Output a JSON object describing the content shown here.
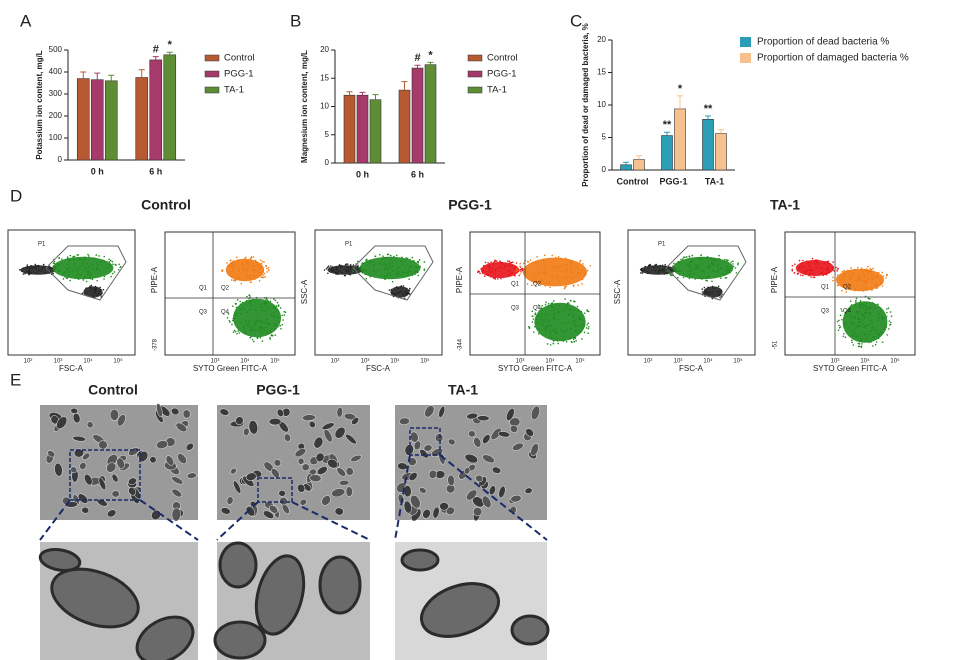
{
  "chart_data": [
    {
      "type": "bar",
      "panel": "A",
      "y_label": "Potassium ion content, mg/L",
      "categories": [
        "0 h",
        "6 h"
      ],
      "ylim": [
        0,
        500
      ],
      "yticks": [
        0,
        100,
        200,
        300,
        400,
        500
      ],
      "series": [
        {
          "name": "Control",
          "color": "#b85a31",
          "values": [
            370,
            375
          ],
          "errors": [
            30,
            35
          ]
        },
        {
          "name": "PGG-1",
          "color": "#a63a6b",
          "values": [
            365,
            455
          ],
          "errors": [
            30,
            15
          ],
          "annotations": [
            null,
            "#"
          ]
        },
        {
          "name": "TA-1",
          "color": "#5f8d35",
          "values": [
            360,
            478
          ],
          "errors": [
            25,
            12
          ],
          "annotations": [
            null,
            "*"
          ]
        }
      ]
    },
    {
      "type": "bar",
      "panel": "B",
      "y_label": "Magnesium ion content, mg/L",
      "categories": [
        "0 h",
        "6 h"
      ],
      "ylim": [
        0,
        20
      ],
      "yticks": [
        0,
        5,
        10,
        15,
        20
      ],
      "series": [
        {
          "name": "Control",
          "color": "#b85a31",
          "values": [
            12,
            12.9
          ],
          "errors": [
            0.6,
            1.5
          ]
        },
        {
          "name": "PGG-1",
          "color": "#a63a6b",
          "values": [
            12,
            16.8
          ],
          "errors": [
            0.5,
            0.5
          ],
          "annotations": [
            null,
            "#"
          ]
        },
        {
          "name": "TA-1",
          "color": "#5f8d35",
          "values": [
            11.2,
            17.4
          ],
          "errors": [
            0.9,
            0.4
          ],
          "annotations": [
            null,
            "*"
          ]
        }
      ]
    },
    {
      "type": "bar",
      "panel": "C",
      "y_label": "Proportion of dead or damaged bacteria, %",
      "categories": [
        "Control",
        "PGG-1",
        "TA-1"
      ],
      "ylim": [
        0,
        20
      ],
      "yticks": [
        0,
        5,
        10,
        15,
        20
      ],
      "series": [
        {
          "name": "Proportion of dead bacteria %",
          "color": "#2b9db5",
          "values": [
            0.8,
            5.3,
            7.8
          ],
          "errors": [
            0.4,
            0.5,
            0.5
          ],
          "annotations": [
            null,
            "**",
            "**"
          ]
        },
        {
          "name": "Proportion of damaged bacteria %",
          "color": "#f7c08f",
          "values": [
            1.6,
            9.4,
            5.6
          ],
          "errors": [
            0.6,
            2,
            0.6
          ],
          "annotations": [
            null,
            "*",
            null
          ]
        }
      ]
    }
  ],
  "flow_cytometry": {
    "panel": "D",
    "groups": [
      "Control",
      "PGG-1",
      "TA-1"
    ],
    "scatter_plot": {
      "x_label": "FSC-A",
      "y_label": "SSC-A",
      "gate": "P1",
      "x_ticks": [
        "10²",
        "10³",
        "10⁴",
        "10⁵"
      ]
    },
    "viability_plot": {
      "x_label": "SYTO Green FITC-A",
      "y_label": "PIPE-A",
      "quadrants": [
        "Q1",
        "Q2",
        "Q3",
        "Q4"
      ],
      "x_ticks": [
        "10³",
        "10⁴",
        "10⁵"
      ],
      "y_min_labels": [
        "-378",
        "-344",
        "-51"
      ]
    }
  },
  "tem": {
    "panel": "E",
    "groups": [
      "Control",
      "PGG-1",
      "TA-1"
    ]
  }
}
